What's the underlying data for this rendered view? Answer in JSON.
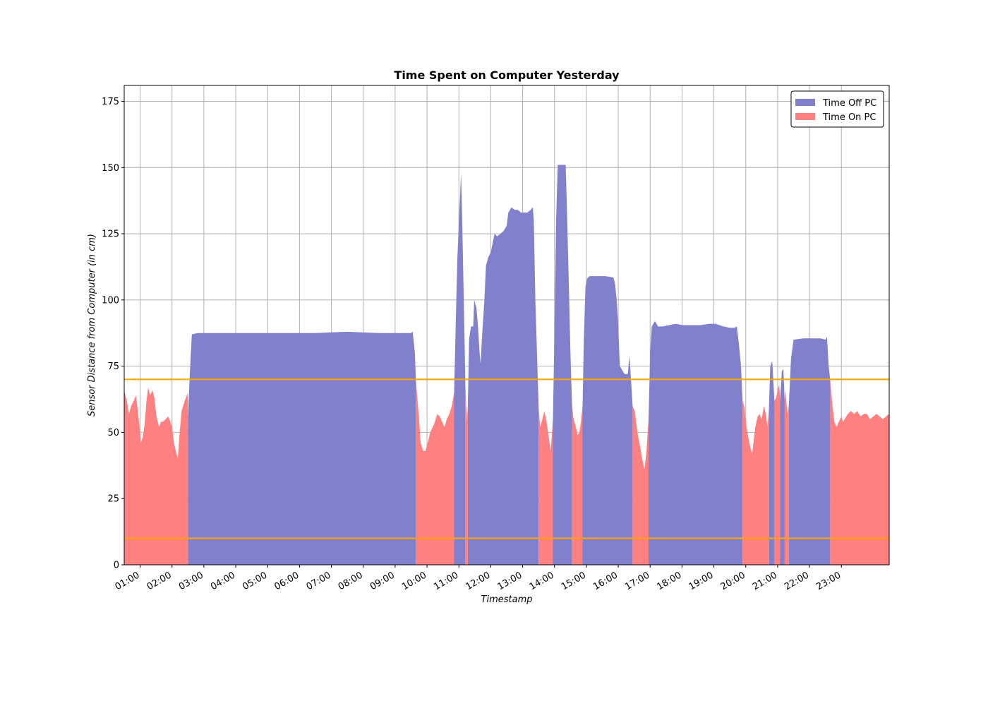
{
  "chart_data": {
    "type": "area",
    "title": "Time Spent on Computer Yesterday",
    "xlabel": "Timestamp",
    "ylabel": "Sensor Distance from Computer (in cm)",
    "x_unit": "hours",
    "xlim": [
      0.5,
      24.5
    ],
    "ylim": [
      0,
      181
    ],
    "y_ticks": [
      0,
      25,
      50,
      75,
      100,
      125,
      150,
      175
    ],
    "x_ticks": [
      {
        "value": 1,
        "label": "01:00"
      },
      {
        "value": 2,
        "label": "02:00"
      },
      {
        "value": 3,
        "label": "03:00"
      },
      {
        "value": 4,
        "label": "04:00"
      },
      {
        "value": 5,
        "label": "05:00"
      },
      {
        "value": 6,
        "label": "06:00"
      },
      {
        "value": 7,
        "label": "07:00"
      },
      {
        "value": 8,
        "label": "08:00"
      },
      {
        "value": 9,
        "label": "09:00"
      },
      {
        "value": 10,
        "label": "10:00"
      },
      {
        "value": 11,
        "label": "11:00"
      },
      {
        "value": 12,
        "label": "12:00"
      },
      {
        "value": 13,
        "label": "13:00"
      },
      {
        "value": 14,
        "label": "14:00"
      },
      {
        "value": 15,
        "label": "15:00"
      },
      {
        "value": 16,
        "label": "16:00"
      },
      {
        "value": 17,
        "label": "17:00"
      },
      {
        "value": 18,
        "label": "18:00"
      },
      {
        "value": 19,
        "label": "19:00"
      },
      {
        "value": 20,
        "label": "20:00"
      },
      {
        "value": 21,
        "label": "21:00"
      },
      {
        "value": 22,
        "label": "22:00"
      },
      {
        "value": 23,
        "label": "23:00"
      }
    ],
    "grid": true,
    "legend_position": "top-right",
    "thresholds": [
      {
        "value": 70,
        "color": "#ffa500"
      },
      {
        "value": 10,
        "color": "#ffa500"
      }
    ],
    "series": [
      {
        "name": "Time Off PC",
        "color": "#8080cc",
        "segments": [
          [
            [
              2.5,
              55
            ],
            [
              2.55,
              70
            ],
            [
              2.62,
              87
            ],
            [
              2.8,
              87.5
            ],
            [
              3.5,
              87.5
            ],
            [
              4.5,
              87.5
            ],
            [
              5.5,
              87.5
            ],
            [
              6.5,
              87.5
            ],
            [
              7.5,
              88
            ],
            [
              8.5,
              87.5
            ],
            [
              9.5,
              87.5
            ],
            [
              9.55,
              88
            ],
            [
              9.62,
              80
            ],
            [
              9.65,
              70
            ]
          ],
          [
            [
              10.85,
              65
            ],
            [
              10.9,
              90
            ],
            [
              10.95,
              115
            ],
            [
              11.0,
              130
            ],
            [
              11.07,
              148
            ],
            [
              11.12,
              120
            ],
            [
              11.17,
              90
            ],
            [
              11.2,
              70
            ]
          ],
          [
            [
              11.28,
              60
            ],
            [
              11.32,
              85
            ],
            [
              11.38,
              90
            ],
            [
              11.45,
              90
            ],
            [
              11.48,
              100
            ],
            [
              11.55,
              97
            ],
            [
              11.6,
              90
            ],
            [
              11.65,
              80
            ],
            [
              11.68,
              76
            ],
            [
              11.72,
              85
            ],
            [
              11.8,
              100
            ],
            [
              11.85,
              113
            ],
            [
              11.92,
              116
            ],
            [
              12.0,
              118
            ],
            [
              12.05,
              121
            ],
            [
              12.12,
              125
            ],
            [
              12.2,
              124
            ],
            [
              12.3,
              125
            ],
            [
              12.4,
              126
            ],
            [
              12.5,
              128
            ],
            [
              12.55,
              133
            ],
            [
              12.65,
              135
            ],
            [
              12.75,
              134
            ],
            [
              12.85,
              134
            ],
            [
              12.95,
              133
            ],
            [
              13.05,
              133
            ],
            [
              13.15,
              133
            ],
            [
              13.25,
              134
            ],
            [
              13.32,
              135
            ],
            [
              13.35,
              130
            ],
            [
              13.4,
              100
            ],
            [
              13.45,
              80
            ],
            [
              13.5,
              60
            ]
          ],
          [
            [
              13.95,
              55
            ],
            [
              14.0,
              90
            ],
            [
              14.05,
              130
            ],
            [
              14.1,
              151
            ],
            [
              14.2,
              151
            ],
            [
              14.35,
              151
            ],
            [
              14.4,
              130
            ],
            [
              14.45,
              105
            ],
            [
              14.5,
              80
            ],
            [
              14.55,
              60
            ]
          ],
          [
            [
              14.88,
              60
            ],
            [
              14.92,
              85
            ],
            [
              14.97,
              105
            ],
            [
              15.02,
              108
            ],
            [
              15.1,
              109
            ],
            [
              15.4,
              109
            ],
            [
              15.6,
              109
            ],
            [
              15.85,
              108.5
            ],
            [
              15.9,
              106
            ],
            [
              15.95,
              100
            ],
            [
              16.0,
              90
            ],
            [
              16.05,
              75
            ],
            [
              16.2,
              72
            ],
            [
              16.3,
              72
            ],
            [
              16.35,
              79
            ],
            [
              16.4,
              70
            ],
            [
              16.45,
              60
            ]
          ],
          [
            [
              16.95,
              55
            ],
            [
              17.0,
              80
            ],
            [
              17.05,
              90
            ],
            [
              17.15,
              92
            ],
            [
              17.25,
              90
            ],
            [
              17.4,
              90
            ],
            [
              17.6,
              90.5
            ],
            [
              17.8,
              91
            ],
            [
              18.0,
              90.5
            ],
            [
              18.3,
              90.5
            ],
            [
              18.6,
              90.5
            ],
            [
              18.85,
              91
            ],
            [
              19.05,
              91
            ],
            [
              19.3,
              90
            ],
            [
              19.5,
              89.5
            ],
            [
              19.65,
              89.5
            ],
            [
              19.72,
              90
            ],
            [
              19.78,
              84
            ],
            [
              19.85,
              75
            ],
            [
              19.9,
              62
            ]
          ],
          [
            [
              20.73,
              60
            ],
            [
              20.77,
              75
            ],
            [
              20.83,
              77
            ],
            [
              20.9,
              62
            ]
          ],
          [
            [
              21.08,
              62
            ],
            [
              21.13,
              73
            ],
            [
              21.18,
              74
            ],
            [
              21.22,
              62
            ]
          ],
          [
            [
              21.35,
              60
            ],
            [
              21.42,
              78
            ],
            [
              21.5,
              85
            ],
            [
              21.8,
              85.5
            ],
            [
              22.1,
              85.5
            ],
            [
              22.35,
              85.5
            ],
            [
              22.5,
              85
            ],
            [
              22.55,
              86
            ],
            [
              22.6,
              75
            ],
            [
              22.65,
              70
            ]
          ]
        ]
      },
      {
        "name": "Time On PC",
        "color": "#ff8080",
        "segments": [
          [
            [
              0.5,
              66
            ],
            [
              0.58,
              62
            ],
            [
              0.65,
              57
            ],
            [
              0.72,
              60
            ],
            [
              0.8,
              62
            ],
            [
              0.87,
              64
            ],
            [
              0.93,
              58
            ],
            [
              0.98,
              52
            ],
            [
              1.02,
              46
            ],
            [
              1.08,
              48
            ],
            [
              1.14,
              53
            ],
            [
              1.2,
              62
            ],
            [
              1.25,
              67
            ],
            [
              1.32,
              64
            ],
            [
              1.38,
              66
            ],
            [
              1.45,
              63
            ],
            [
              1.5,
              57
            ],
            [
              1.55,
              54
            ],
            [
              1.6,
              52
            ],
            [
              1.65,
              54
            ],
            [
              1.72,
              54
            ],
            [
              1.8,
              55
            ],
            [
              1.88,
              56
            ],
            [
              1.95,
              54
            ],
            [
              2.0,
              52
            ],
            [
              2.06,
              46
            ],
            [
              2.12,
              43
            ],
            [
              2.18,
              40
            ],
            [
              2.24,
              50
            ],
            [
              2.3,
              58
            ],
            [
              2.4,
              62
            ],
            [
              2.5,
              65
            ]
          ],
          [
            [
              9.65,
              70
            ],
            [
              9.75,
              55
            ],
            [
              9.8,
              46
            ],
            [
              9.88,
              43
            ],
            [
              9.95,
              43
            ],
            [
              10.02,
              46
            ],
            [
              10.1,
              50
            ],
            [
              10.18,
              52
            ],
            [
              10.25,
              54
            ],
            [
              10.32,
              57
            ],
            [
              10.4,
              56
            ],
            [
              10.47,
              54
            ],
            [
              10.55,
              52
            ],
            [
              10.62,
              55
            ],
            [
              10.7,
              57
            ],
            [
              10.78,
              60
            ],
            [
              10.85,
              65
            ]
          ],
          [
            [
              11.2,
              70
            ],
            [
              11.23,
              60
            ],
            [
              11.25,
              54
            ],
            [
              11.28,
              60
            ]
          ],
          [
            [
              13.5,
              60
            ],
            [
              13.55,
              52
            ],
            [
              13.62,
              55
            ],
            [
              13.68,
              58
            ],
            [
              13.75,
              54
            ],
            [
              13.82,
              48
            ],
            [
              13.88,
              43
            ],
            [
              13.95,
              55
            ]
          ],
          [
            [
              14.55,
              60
            ],
            [
              14.6,
              55
            ],
            [
              14.67,
              52
            ],
            [
              14.72,
              49
            ],
            [
              14.78,
              50
            ],
            [
              14.83,
              54
            ],
            [
              14.88,
              60
            ]
          ],
          [
            [
              16.45,
              60
            ],
            [
              16.52,
              58
            ],
            [
              16.6,
              50
            ],
            [
              16.68,
              45
            ],
            [
              16.75,
              40
            ],
            [
              16.82,
              36
            ],
            [
              16.88,
              42
            ],
            [
              16.95,
              55
            ]
          ],
          [
            [
              19.9,
              62
            ],
            [
              19.95,
              60
            ],
            [
              20.02,
              52
            ],
            [
              20.08,
              48
            ],
            [
              20.15,
              44
            ],
            [
              20.2,
              42
            ],
            [
              20.25,
              47
            ],
            [
              20.3,
              52
            ],
            [
              20.37,
              56
            ],
            [
              20.43,
              57
            ],
            [
              20.5,
              55
            ],
            [
              20.57,
              60
            ],
            [
              20.63,
              57
            ],
            [
              20.68,
              52
            ],
            [
              20.73,
              60
            ]
          ],
          [
            [
              20.9,
              62
            ],
            [
              20.95,
              63
            ],
            [
              21.0,
              66
            ],
            [
              21.05,
              68
            ],
            [
              21.08,
              62
            ]
          ],
          [
            [
              21.22,
              62
            ],
            [
              21.25,
              66
            ],
            [
              21.3,
              57
            ],
            [
              21.35,
              60
            ]
          ],
          [
            [
              22.65,
              70
            ],
            [
              22.72,
              60
            ],
            [
              22.78,
              54
            ],
            [
              22.85,
              52
            ],
            [
              22.92,
              54
            ],
            [
              23.0,
              56
            ],
            [
              23.05,
              54
            ],
            [
              23.1,
              55
            ],
            [
              23.2,
              57
            ],
            [
              23.3,
              58
            ],
            [
              23.4,
              57
            ],
            [
              23.5,
              58
            ],
            [
              23.6,
              56
            ],
            [
              23.7,
              57
            ],
            [
              23.8,
              57
            ],
            [
              23.9,
              55
            ],
            [
              24.0,
              56
            ],
            [
              24.1,
              57
            ],
            [
              24.2,
              56
            ],
            [
              24.3,
              55
            ],
            [
              24.4,
              56
            ],
            [
              24.5,
              57
            ]
          ]
        ]
      }
    ]
  }
}
